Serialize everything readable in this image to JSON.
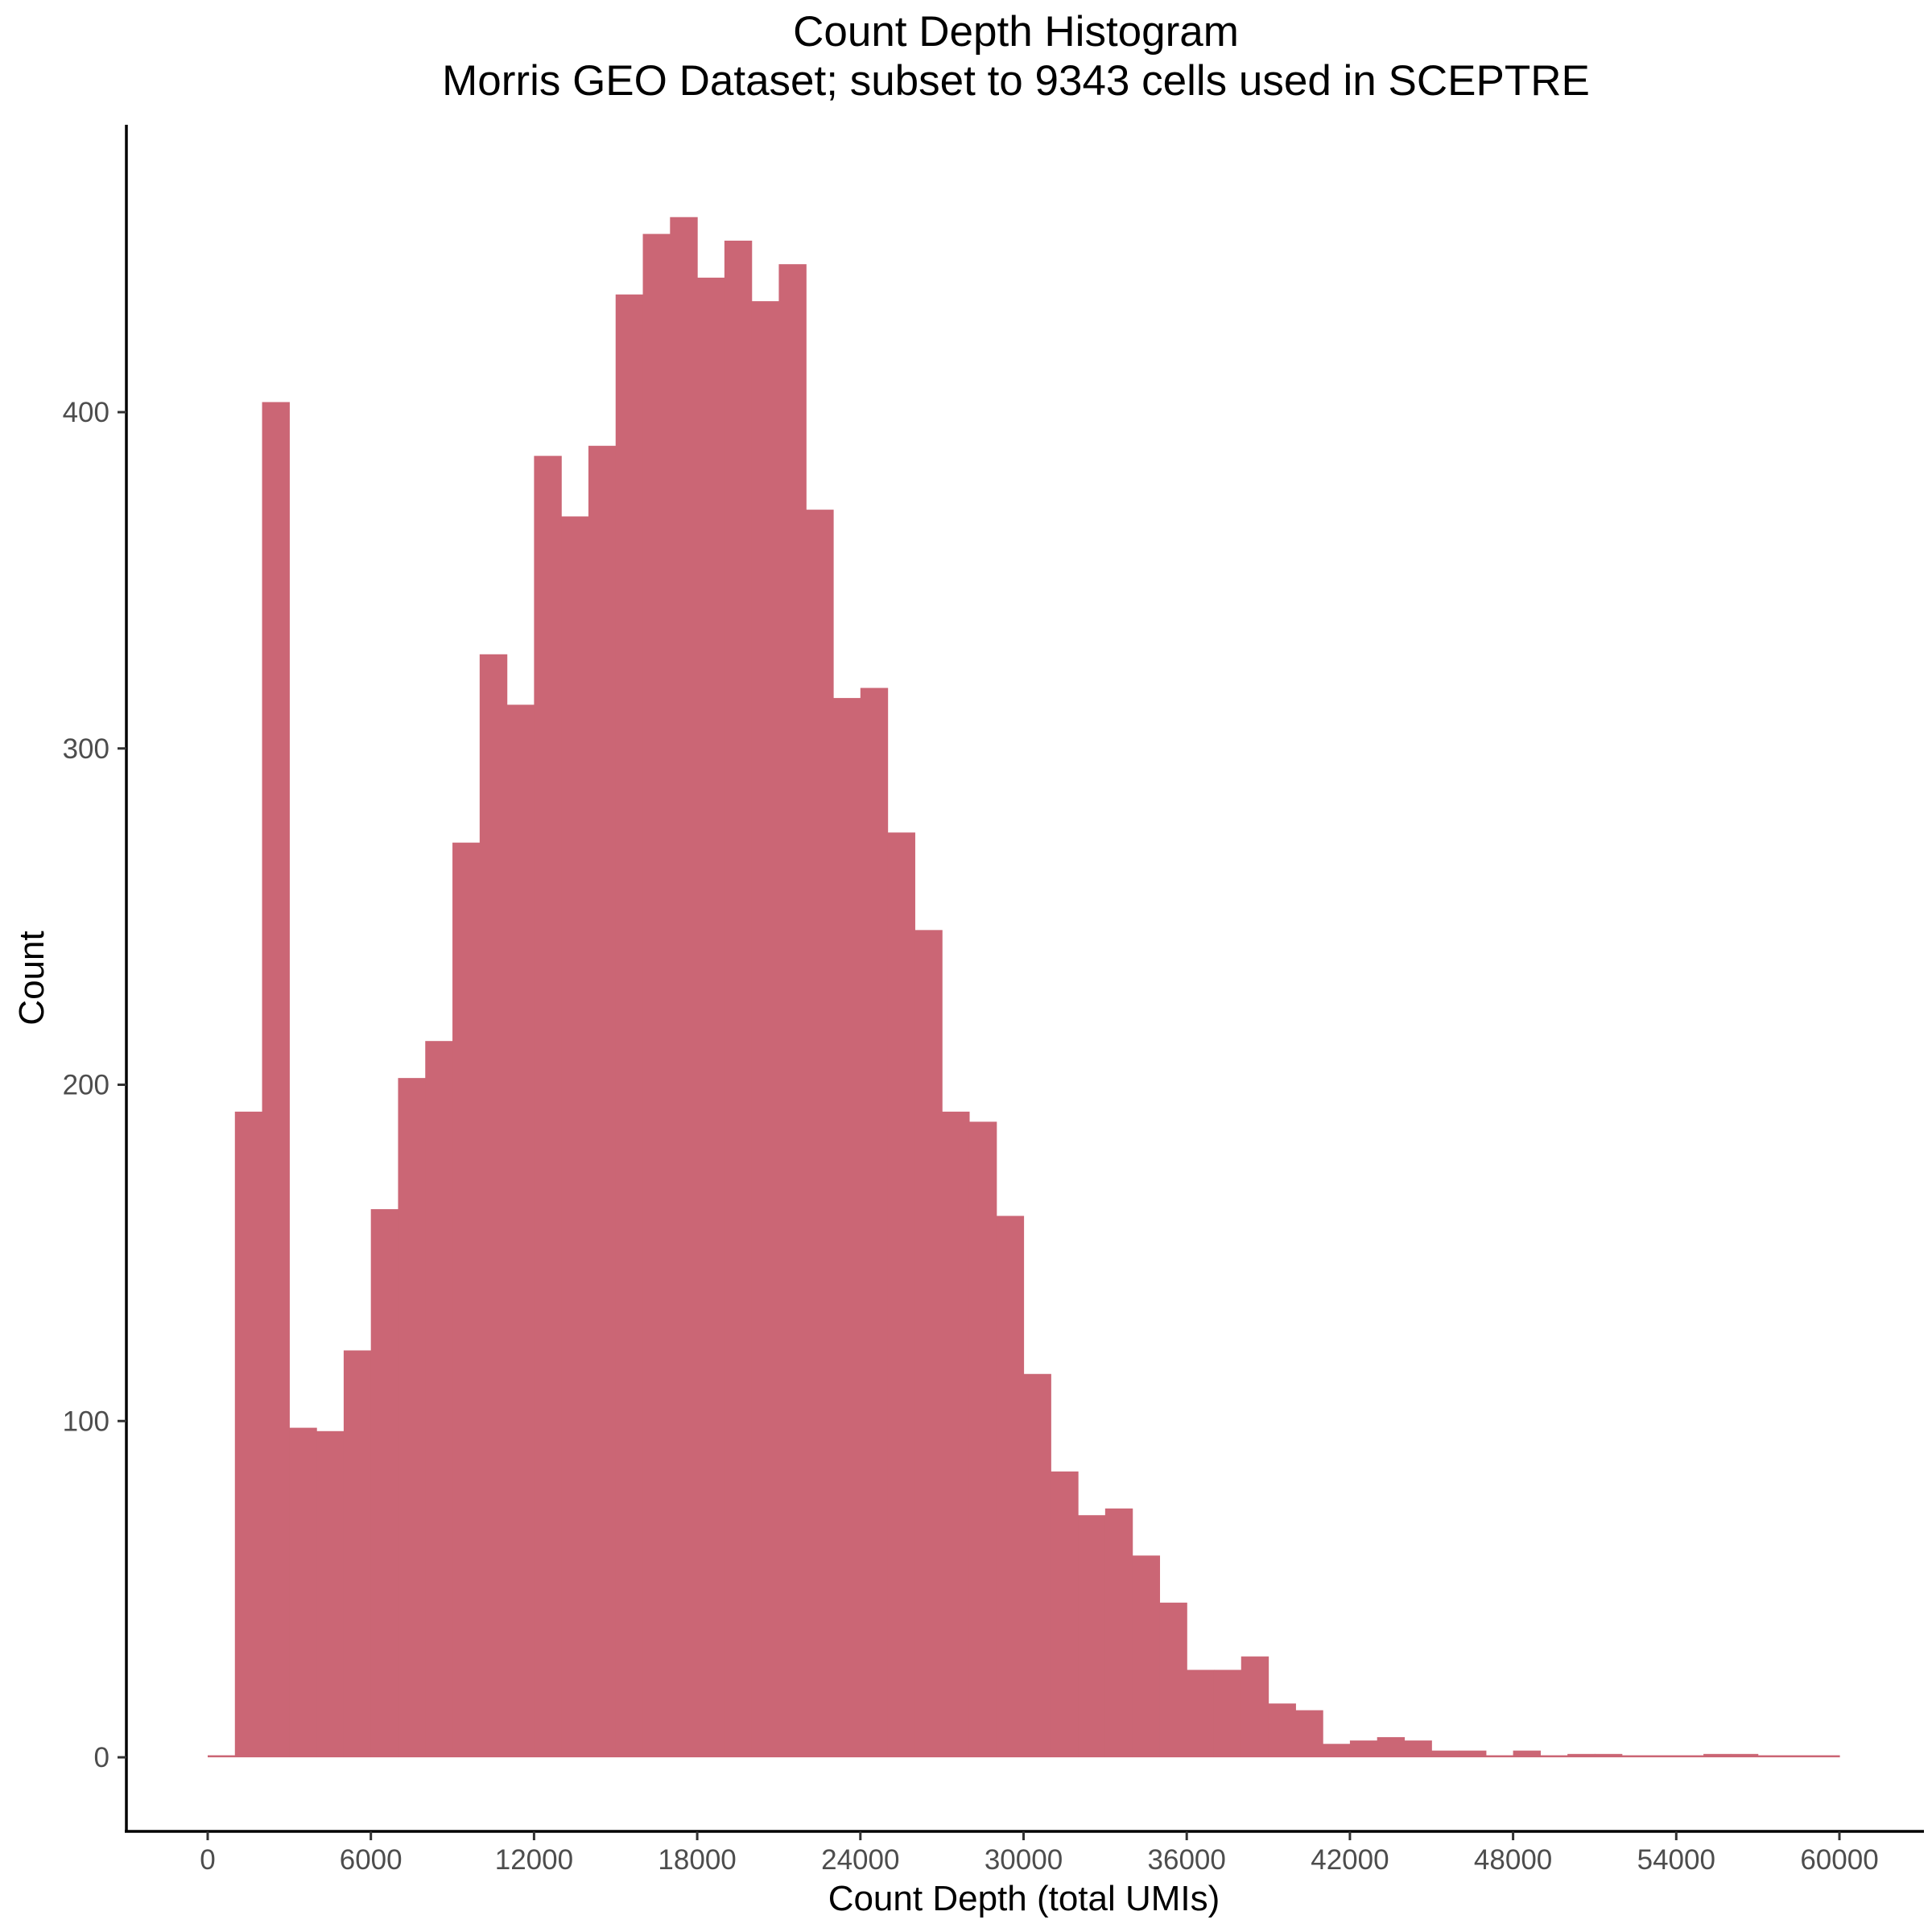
{
  "chart_data": {
    "type": "bar",
    "title": "Count Depth Histogram",
    "subtitle": "Morris GEO Dataset; subset to 9343 cells used in SCEPTRE",
    "xlabel": "Count Depth (total UMIs)",
    "ylabel": "Count",
    "xlim": [
      0,
      60000
    ],
    "ylim": [
      0,
      460
    ],
    "x_ticks": [
      0,
      6000,
      12000,
      18000,
      24000,
      30000,
      36000,
      42000,
      48000,
      54000,
      60000
    ],
    "x_tick_labels": [
      "0",
      "6000",
      "12000",
      "18000",
      "24000",
      "30000",
      "36000",
      "42000",
      "48000",
      "54000",
      "60000"
    ],
    "y_ticks": [
      0,
      100,
      200,
      300,
      400
    ],
    "y_tick_labels": [
      "0",
      "100",
      "200",
      "300",
      "400"
    ],
    "bin_width": 1000,
    "bin_start": 0,
    "values": [
      0,
      192,
      403,
      98,
      97,
      121,
      163,
      202,
      213,
      272,
      328,
      313,
      387,
      369,
      390,
      435,
      453,
      458,
      440,
      451,
      433,
      444,
      371,
      315,
      318,
      275,
      246,
      192,
      189,
      161,
      114,
      85,
      72,
      74,
      60,
      46,
      26,
      26,
      30,
      16,
      14,
      4,
      5,
      6,
      5,
      2,
      2,
      0,
      2,
      0,
      1,
      1,
      0,
      0,
      0,
      1,
      1,
      0,
      0,
      0
    ],
    "bar_color": "#cb6675",
    "grid": false,
    "legend": "none"
  }
}
